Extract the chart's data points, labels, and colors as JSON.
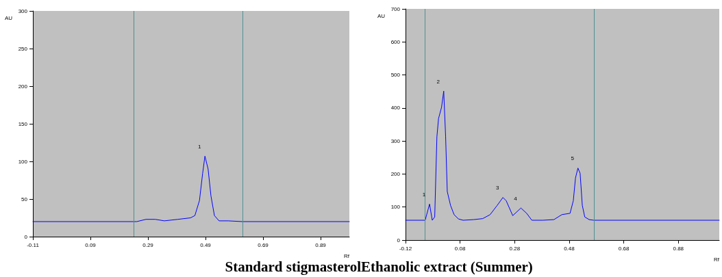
{
  "chart_data": [
    {
      "type": "line",
      "title": "Standard stigmasterol",
      "xlabel": "Rf",
      "ylabel": "AU",
      "xlim": [
        -0.11,
        0.99
      ],
      "xticks": [
        -0.11,
        0.09,
        0.29,
        0.49,
        0.69,
        0.89
      ],
      "ylim": [
        0,
        300
      ],
      "yticks": [
        0,
        50,
        100,
        150,
        200,
        250,
        300
      ],
      "grid": false,
      "marker": "none",
      "line_style": "solid",
      "series": [
        {
          "color": "#0000ff",
          "x": [
            -0.11,
            0.24,
            0.251,
            0.283,
            0.315,
            0.347,
            0.394,
            0.438,
            0.453,
            0.469,
            0.48,
            0.488,
            0.499,
            0.509,
            0.521,
            0.537,
            0.569,
            0.619,
            0.99
          ],
          "values": [
            20,
            20,
            20,
            23,
            23,
            21,
            23,
            25,
            28,
            48,
            84,
            107,
            90,
            54,
            28,
            21,
            21,
            20,
            20
          ]
        }
      ],
      "ref_lines": [
        {
          "axis": "x",
          "value": 0.24,
          "color": "#4f8f8f"
        },
        {
          "axis": "x",
          "value": 0.62,
          "color": "#4f8f8f"
        }
      ],
      "annotations": [
        {
          "text": "1",
          "x": 0.488,
          "y": 107
        }
      ]
    },
    {
      "type": "line",
      "title": "Ethanolic extract (Summer)",
      "xlabel": "Rf",
      "ylabel": "AU",
      "xlim": [
        -0.12,
        1.03
      ],
      "xticks": [
        -0.12,
        0.08,
        0.28,
        0.48,
        0.68,
        0.88
      ],
      "ylim": [
        0,
        700
      ],
      "yticks": [
        0,
        100,
        200,
        300,
        400,
        500,
        600,
        700
      ],
      "grid": false,
      "marker": "none",
      "line_style": "solid",
      "series": [
        {
          "color": "#0000ff",
          "x": [
            -0.12,
            -0.048,
            -0.032,
            -0.022,
            -0.013,
            -0.005,
            0.001,
            0.012,
            0.02,
            0.027,
            0.033,
            0.045,
            0.058,
            0.074,
            0.091,
            0.13,
            0.163,
            0.19,
            0.216,
            0.237,
            0.249,
            0.273,
            0.303,
            0.324,
            0.343,
            0.383,
            0.424,
            0.453,
            0.483,
            0.495,
            0.503,
            0.512,
            0.52,
            0.528,
            0.537,
            0.553,
            0.57,
            1.03
          ],
          "values": [
            60,
            60,
            109,
            60,
            70,
            313,
            368,
            402,
            451,
            313,
            147,
            105,
            77,
            64,
            60,
            62,
            65,
            77,
            105,
            129,
            119,
            74,
            97,
            81,
            60,
            60,
            62,
            77,
            81,
            119,
            188,
            218,
            202,
            105,
            70,
            62,
            60,
            60
          ]
        }
      ],
      "ref_lines": [
        {
          "axis": "x",
          "value": -0.05,
          "color": "#4f8f8f"
        },
        {
          "axis": "x",
          "value": 0.57,
          "color": "#4f8f8f"
        }
      ],
      "annotations": [
        {
          "text": "1",
          "x": -0.032,
          "y": 109
        },
        {
          "text": "2",
          "x": 0.02,
          "y": 451
        },
        {
          "text": "3",
          "x": 0.237,
          "y": 129
        },
        {
          "text": "4",
          "x": 0.303,
          "y": 97
        },
        {
          "text": "5",
          "x": 0.512,
          "y": 218
        }
      ]
    }
  ]
}
